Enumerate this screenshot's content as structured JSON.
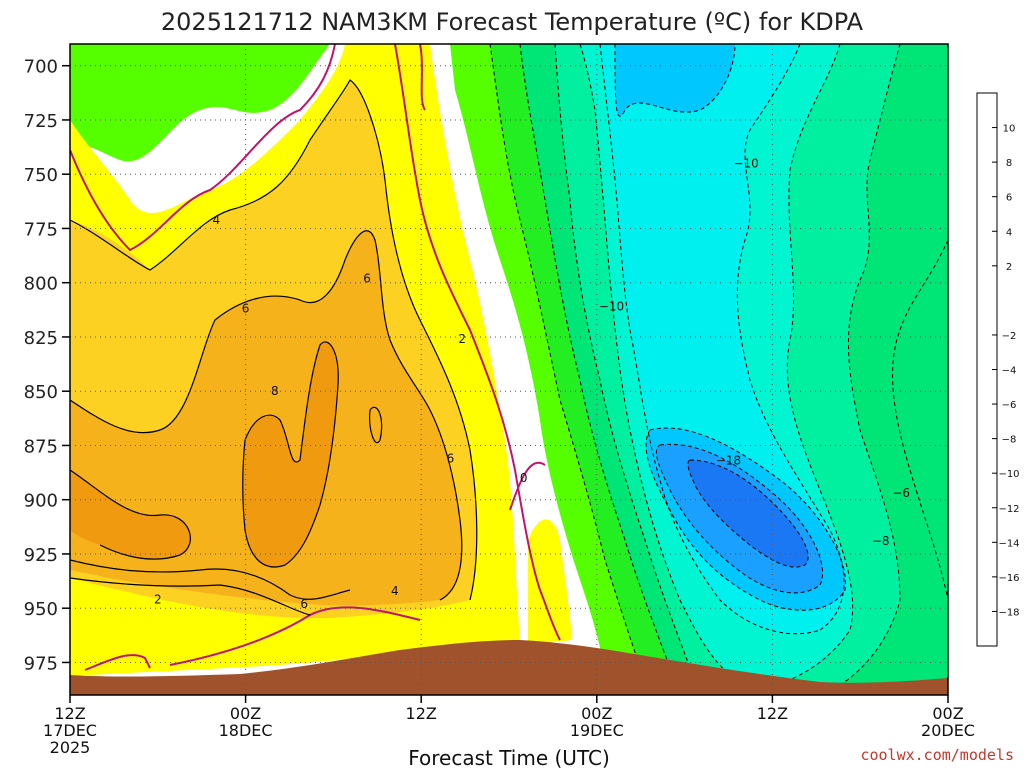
{
  "title": "2025121712 NAM3KM Forecast Temperature (ºC) for KDPA",
  "xlabel": "Forecast Time (UTC)",
  "credit": "coolwx.com/models",
  "chart_data": {
    "type": "heatmap",
    "title": "2025121712 NAM3KM Forecast Temperature (ºC) for KDPA",
    "xlabel": "Forecast Time (UTC)",
    "ylabel": "",
    "y_axis": "pressure (hPa), inverted",
    "ylim": [
      990,
      690
    ],
    "y_ticks": [
      700,
      725,
      750,
      775,
      800,
      825,
      850,
      875,
      900,
      925,
      950,
      975
    ],
    "x_ticks": [
      {
        "label": "12Z",
        "sub": "17DEC",
        "sub2": "2025",
        "hour": 0
      },
      {
        "label": "00Z",
        "sub": "18DEC",
        "sub2": "",
        "hour": 12
      },
      {
        "label": "12Z",
        "sub": "",
        "sub2": "",
        "hour": 24
      },
      {
        "label": "00Z",
        "sub": "19DEC",
        "sub2": "",
        "hour": 36
      },
      {
        "label": "12Z",
        "sub": "",
        "sub2": "",
        "hour": 48
      },
      {
        "label": "00Z",
        "sub": "20DEC",
        "sub2": "",
        "hour": 60
      }
    ],
    "xlim_hours": [
      0,
      60
    ],
    "grid": true,
    "colorbar": {
      "ticks": [
        10,
        8,
        6,
        4,
        2,
        -2,
        -4,
        -6,
        -8,
        -10,
        -12,
        -14,
        -16,
        -18
      ],
      "bins": [
        {
          "range": [
            10,
            12
          ],
          "color": "#e07a00"
        },
        {
          "range": [
            8,
            10
          ],
          "color": "#f09a10"
        },
        {
          "range": [
            6,
            8
          ],
          "color": "#f5b21a"
        },
        {
          "range": [
            4,
            6
          ],
          "color": "#fcd122"
        },
        {
          "range": [
            2,
            4
          ],
          "color": "#ffff00"
        },
        {
          "range": [
            -2,
            2
          ],
          "color": "#ffffff"
        },
        {
          "range": [
            -4,
            -2
          ],
          "color": "#55ff00"
        },
        {
          "range": [
            -6,
            -4
          ],
          "color": "#22ee22"
        },
        {
          "range": [
            -8,
            -6
          ],
          "color": "#00e676"
        },
        {
          "range": [
            -10,
            -8
          ],
          "color": "#00f0a0"
        },
        {
          "range": [
            -12,
            -10
          ],
          "color": "#00f5d0"
        },
        {
          "range": [
            -14,
            -12
          ],
          "color": "#00f0f0"
        },
        {
          "range": [
            -16,
            -14
          ],
          "color": "#00c8ff"
        },
        {
          "range": [
            -18,
            -16
          ],
          "color": "#1aa0ff"
        },
        {
          "range": [
            -20,
            -18
          ],
          "color": "#1a78f5"
        }
      ]
    },
    "contour_labels": [
      {
        "value": "4",
        "hour": 10.0,
        "p": 771
      },
      {
        "value": "6",
        "hour": 12.0,
        "p": 812
      },
      {
        "value": "6",
        "hour": 20.3,
        "p": 798
      },
      {
        "value": "8",
        "hour": 14.0,
        "p": 850
      },
      {
        "value": "2",
        "hour": 26.8,
        "p": 826
      },
      {
        "value": "6",
        "hour": 26.0,
        "p": 881
      },
      {
        "value": "0",
        "hour": 31.0,
        "p": 890
      },
      {
        "value": "4",
        "hour": 22.2,
        "p": 942
      },
      {
        "value": "6",
        "hour": 16.0,
        "p": 948
      },
      {
        "value": "2",
        "hour": 6.0,
        "p": 946
      },
      {
        "value": "−10",
        "hour": 46.2,
        "p": 745
      },
      {
        "value": "−10",
        "hour": 37.0,
        "p": 811
      },
      {
        "value": "−18",
        "hour": 45.0,
        "p": 882
      },
      {
        "value": "−6",
        "hour": 56.8,
        "p": 897
      },
      {
        "value": "−8",
        "hour": 55.4,
        "p": 919
      }
    ],
    "terrain_color": "#a0522d",
    "freezing_line_color": "#c0146e",
    "contour_interval": 2
  }
}
